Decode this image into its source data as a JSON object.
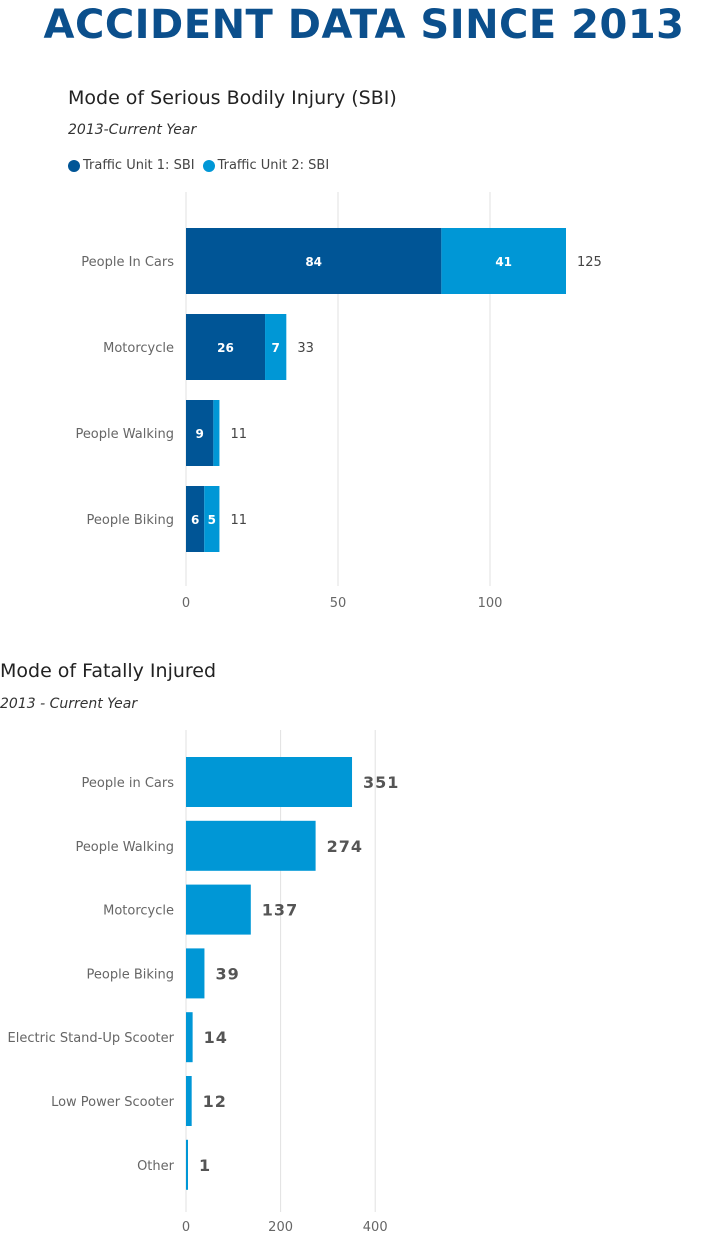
{
  "page": {
    "heading": "ACCIDENT DATA SINCE 2013"
  },
  "colors": {
    "heading": "#0b4f8c",
    "series1": "#005596",
    "series2": "#0097d6",
    "gridline": "#e2e2e2"
  },
  "chart_data": [
    {
      "type": "bar",
      "orientation": "horizontal",
      "stacked": true,
      "title": "Mode of Serious Bodily Injury (SBI)",
      "subtitle": "2013-Current Year",
      "legend": [
        {
          "label": "Traffic Unit 1: SBI",
          "color": "#005596"
        },
        {
          "label": "Traffic Unit 2: SBI",
          "color": "#0097d6"
        }
      ],
      "categories": [
        "People In Cars",
        "Motorcycle",
        "People Walking",
        "People Biking"
      ],
      "series": [
        {
          "name": "Traffic Unit 1: SBI",
          "values": [
            84,
            26,
            9,
            6
          ]
        },
        {
          "name": "Traffic Unit 2: SBI",
          "values": [
            41,
            7,
            2,
            5
          ]
        }
      ],
      "segment_labels": [
        [
          "84",
          "41"
        ],
        [
          "26",
          "7"
        ],
        [
          "9",
          ""
        ],
        [
          "6",
          "5"
        ]
      ],
      "totals": [
        125,
        33,
        11,
        11
      ],
      "xlim": [
        0,
        130
      ],
      "xticks": [
        0,
        50,
        100
      ],
      "grid": true
    },
    {
      "type": "bar",
      "orientation": "horizontal",
      "stacked": false,
      "title": "Mode of Fatally Injured",
      "subtitle": "2013 - Current Year",
      "categories": [
        "People in Cars",
        "People Walking",
        "Motorcycle",
        "People Biking",
        "Electric Stand-Up Scooter",
        "Low Power Scooter",
        "Other"
      ],
      "values": [
        351,
        274,
        137,
        39,
        14,
        12,
        1
      ],
      "color": "#0097d6",
      "xlim": [
        0,
        430
      ],
      "xticks": [
        0,
        200,
        400
      ],
      "grid": true
    }
  ]
}
